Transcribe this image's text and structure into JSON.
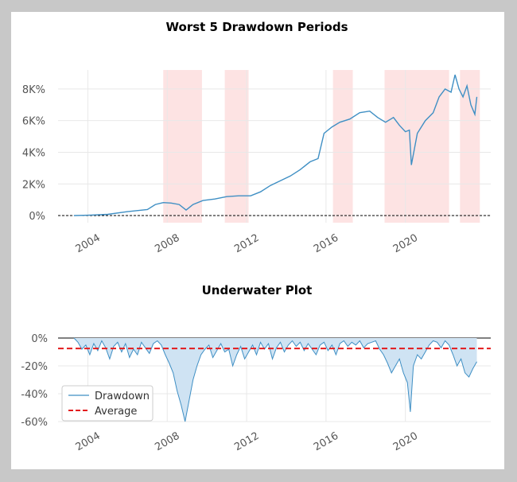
{
  "chart_data": [
    {
      "type": "line",
      "title": "Worst 5 Drawdown Periods",
      "xlabel": "",
      "ylabel": "",
      "x_ticks": [
        "2004",
        "2008",
        "2012",
        "2016",
        "2020"
      ],
      "y_ticks": [
        "0%",
        "2K%",
        "4K%",
        "6K%",
        "8K%"
      ],
      "xlim": [
        2002.5,
        2024.3
      ],
      "ylim": [
        -450,
        9200
      ],
      "grid": true,
      "baseline": 0,
      "series": [
        {
          "color": "#3f8fc4",
          "x": [
            2003.3,
            2004.0,
            2005.0,
            2006.0,
            2007.0,
            2007.4,
            2007.8,
            2008.2,
            2008.6,
            2008.95,
            2009.3,
            2009.8,
            2010.4,
            2011.0,
            2011.6,
            2012.2,
            2012.7,
            2013.2,
            2013.7,
            2014.2,
            2014.7,
            2015.2,
            2015.6,
            2015.9,
            2016.3,
            2016.7,
            2017.2,
            2017.7,
            2018.2,
            2018.6,
            2019.0,
            2019.4,
            2019.7,
            2020.0,
            2020.2,
            2020.3,
            2020.6,
            2021.0,
            2021.4,
            2021.7,
            2022.0,
            2022.3,
            2022.5,
            2022.7,
            2022.9,
            2023.1,
            2023.3,
            2023.5,
            2023.6
          ],
          "values": [
            0,
            20,
            80,
            250,
            380,
            700,
            820,
            790,
            700,
            350,
            700,
            950,
            1050,
            1200,
            1250,
            1250,
            1500,
            1900,
            2200,
            2500,
            2900,
            3400,
            3600,
            5200,
            5600,
            5900,
            6100,
            6500,
            6600,
            6200,
            5900,
            6200,
            5700,
            5300,
            5400,
            3200,
            5200,
            6000,
            6500,
            7500,
            8000,
            7800,
            8900,
            8000,
            7500,
            8200,
            7000,
            6400,
            7500
          ]
        }
      ],
      "shaded_periods": [
        [
          2007.8,
          2009.75
        ],
        [
          2010.9,
          2012.1
        ],
        [
          2016.35,
          2017.35
        ],
        [
          2018.95,
          2022.2
        ],
        [
          2022.75,
          2023.75
        ]
      ],
      "shade_color": "#fde3e3"
    },
    {
      "type": "area",
      "title": "Underwater Plot",
      "xlabel": "",
      "ylabel": "",
      "x_ticks": [
        "2004",
        "2008",
        "2012",
        "2016",
        "2020"
      ],
      "y_ticks": [
        "0%",
        "-20%",
        "-40%",
        "-60%"
      ],
      "xlim": [
        2002.5,
        2024.3
      ],
      "ylim": [
        -60,
        0
      ],
      "grid": true,
      "legend": {
        "placement": "lower-left",
        "entries": [
          "Drawdown",
          "Average"
        ]
      },
      "series": [
        {
          "name": "Drawdown",
          "color": "#3f8fc4",
          "fill": "#cfe3f3",
          "x": [
            2003.3,
            2003.5,
            2003.7,
            2003.9,
            2004.1,
            2004.3,
            2004.5,
            2004.7,
            2004.9,
            2005.1,
            2005.3,
            2005.5,
            2005.7,
            2005.9,
            2006.1,
            2006.3,
            2006.5,
            2006.7,
            2006.9,
            2007.1,
            2007.3,
            2007.5,
            2007.7,
            2007.9,
            2008.1,
            2008.3,
            2008.5,
            2008.7,
            2008.9,
            2009.1,
            2009.3,
            2009.5,
            2009.7,
            2009.9,
            2010.1,
            2010.3,
            2010.5,
            2010.7,
            2010.9,
            2011.1,
            2011.3,
            2011.5,
            2011.7,
            2011.9,
            2012.1,
            2012.3,
            2012.5,
            2012.7,
            2012.9,
            2013.1,
            2013.3,
            2013.5,
            2013.7,
            2013.9,
            2014.1,
            2014.3,
            2014.5,
            2014.7,
            2014.9,
            2015.1,
            2015.3,
            2015.5,
            2015.7,
            2015.9,
            2016.1,
            2016.3,
            2016.5,
            2016.7,
            2016.9,
            2017.1,
            2017.3,
            2017.5,
            2017.7,
            2017.9,
            2018.1,
            2018.3,
            2018.5,
            2018.7,
            2018.9,
            2019.1,
            2019.3,
            2019.5,
            2019.7,
            2019.9,
            2020.1,
            2020.25,
            2020.4,
            2020.6,
            2020.8,
            2021.0,
            2021.2,
            2021.4,
            2021.6,
            2021.8,
            2022.0,
            2022.2,
            2022.4,
            2022.6,
            2022.8,
            2023.0,
            2023.2,
            2023.4,
            2023.6
          ],
          "values": [
            0,
            -3,
            -8,
            -5,
            -12,
            -4,
            -9,
            -2,
            -7,
            -15,
            -6,
            -3,
            -10,
            -4,
            -14,
            -8,
            -12,
            -3,
            -7,
            -11,
            -4,
            -2,
            -5,
            -12,
            -18,
            -25,
            -38,
            -48,
            -60,
            -45,
            -30,
            -20,
            -12,
            -8,
            -5,
            -14,
            -9,
            -4,
            -10,
            -8,
            -20,
            -12,
            -6,
            -15,
            -10,
            -5,
            -12,
            -3,
            -8,
            -4,
            -15,
            -7,
            -3,
            -10,
            -5,
            -2,
            -6,
            -3,
            -9,
            -4,
            -8,
            -12,
            -5,
            -3,
            -9,
            -5,
            -12,
            -4,
            -2,
            -6,
            -3,
            -5,
            -2,
            -7,
            -4,
            -3,
            -2,
            -8,
            -12,
            -18,
            -25,
            -20,
            -15,
            -25,
            -32,
            -53,
            -20,
            -12,
            -15,
            -10,
            -5,
            -2,
            -3,
            -7,
            -2,
            -5,
            -12,
            -20,
            -15,
            -25,
            -28,
            -22,
            -17
          ]
        },
        {
          "name": "Average",
          "color": "#e31a1c",
          "value": -7.5
        }
      ]
    }
  ]
}
